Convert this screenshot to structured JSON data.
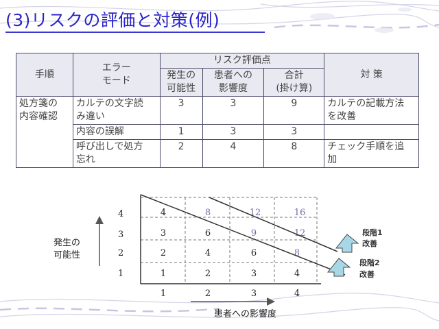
{
  "title": "(3)リスクの評価と対策(例)",
  "table": {
    "headers": {
      "step": "手順",
      "error_mode": [
        "エラー",
        "モード"
      ],
      "risk_points": "リスク評価点",
      "occurrence": [
        "発生の",
        "可能性"
      ],
      "impact": [
        "患者への",
        "影響度"
      ],
      "total": [
        "合計",
        "(掛け算)"
      ],
      "countermeasure": "対 策"
    },
    "rows": [
      {
        "step": [
          "処方箋の",
          "内容確認"
        ],
        "error": [
          "カルテの文字読",
          "み違い"
        ],
        "occurrence": "3",
        "impact": "3",
        "total": "9",
        "countermeasure": [
          "カルテの記載方法",
          "を改善"
        ]
      },
      {
        "step": [],
        "error": [
          "内容の誤解"
        ],
        "occurrence": "1",
        "impact": "3",
        "total": "3",
        "countermeasure": []
      },
      {
        "step": [],
        "error": [
          "呼び出しで処方",
          "忘れ"
        ],
        "occurrence": "2",
        "impact": "4",
        "total": "8",
        "countermeasure": [
          "チェック手順を追",
          "加"
        ]
      }
    ]
  },
  "matrix": {
    "y_axis_label": [
      "発生の",
      "可能性"
    ],
    "x_axis_label": "患者への影響度",
    "row_labels": [
      "4",
      "3",
      "2",
      "1"
    ],
    "col_labels": [
      "1",
      "2",
      "3",
      "4"
    ],
    "cells": [
      [
        "4",
        "8",
        "12",
        "16"
      ],
      [
        "3",
        "6",
        "9",
        "12"
      ],
      [
        "2",
        "4",
        "6",
        "8"
      ],
      [
        "1",
        "2",
        "3",
        "4"
      ]
    ],
    "purple_cells": [
      [
        0,
        1
      ],
      [
        0,
        2
      ],
      [
        0,
        3
      ],
      [
        1,
        2
      ],
      [
        1,
        3
      ],
      [
        2,
        3
      ]
    ],
    "step1": [
      "段階1",
      "改善"
    ],
    "step2": [
      "段階2",
      "改善"
    ]
  },
  "colors": {
    "title": "#2a24c8",
    "arrow_fill": "#a8d8e8",
    "purple_value": "#7b6aa8"
  }
}
